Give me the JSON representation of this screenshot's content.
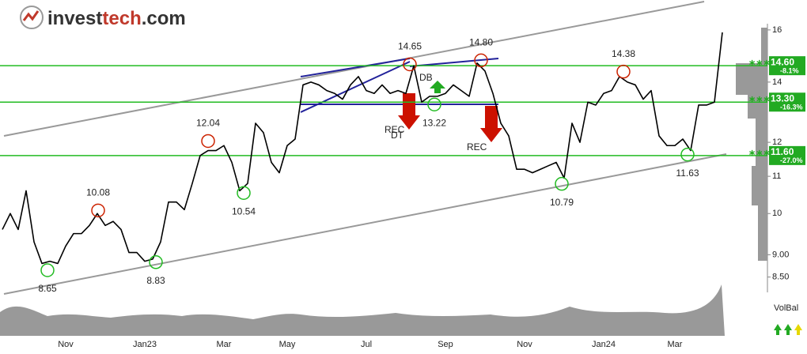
{
  "logo": [
    "invest",
    "tech",
    ".com"
  ],
  "chart_data": {
    "type": "line",
    "ylog": true,
    "ylim": [
      8.34,
      17.1
    ],
    "yticks": [
      {
        "value": 8.5,
        "label": "8.50"
      },
      {
        "value": 9,
        "label": "9.00"
      },
      10,
      11,
      12,
      14,
      16
    ],
    "categories": [
      null,
      null,
      null,
      null,
      null,
      null,
      null,
      null,
      "Nov",
      null,
      null,
      null,
      null,
      null,
      null,
      null,
      null,
      null,
      "Jan23",
      null,
      null,
      null,
      null,
      null,
      null,
      null,
      null,
      null,
      "Mar",
      null,
      null,
      null,
      null,
      null,
      null,
      null,
      "May",
      null,
      null,
      null,
      null,
      null,
      null,
      null,
      null,
      null,
      "Jul",
      null,
      null,
      null,
      null,
      null,
      null,
      null,
      null,
      null,
      "Sep",
      null,
      null,
      null,
      null,
      null,
      null,
      null,
      null,
      null,
      "Nov",
      null,
      null,
      null,
      null,
      null,
      null,
      null,
      null,
      null,
      "Jan24",
      null,
      null,
      null,
      null,
      null,
      null,
      null,
      null,
      "Mar",
      null,
      null,
      null,
      null,
      null,
      null
    ],
    "series": [
      {
        "color": "#000000",
        "values": [
          9.6,
          10.0,
          9.6,
          10.6,
          9.3,
          8.8,
          8.85,
          8.8,
          9.2,
          9.5,
          9.5,
          9.7,
          10.0,
          9.7,
          9.8,
          9.6,
          9.05,
          9.05,
          8.85,
          8.9,
          9.3,
          10.3,
          10.3,
          10.1,
          10.8,
          11.6,
          11.75,
          11.75,
          11.9,
          11.4,
          10.6,
          10.8,
          12.6,
          12.3,
          11.4,
          11.1,
          11.9,
          12.1,
          13.9,
          14.0,
          13.9,
          13.7,
          13.6,
          13.4,
          13.9,
          14.2,
          13.7,
          13.6,
          13.9,
          13.6,
          13.7,
          13.6,
          14.6,
          13.3,
          13.5,
          13.5,
          13.6,
          13.9,
          13.7,
          13.5,
          14.7,
          14.4,
          13.6,
          12.6,
          12.2,
          11.2,
          11.2,
          11.1,
          11.2,
          11.3,
          11.4,
          10.95,
          12.6,
          12.0,
          13.3,
          13.2,
          13.6,
          13.7,
          14.2,
          14.0,
          13.9,
          13.4,
          13.7,
          12.2,
          11.9,
          11.9,
          12.1,
          11.75,
          13.2,
          13.2,
          13.3,
          15.9
        ]
      }
    ],
    "extremes": [
      8.65,
      10.08,
      8.83,
      12.04,
      10.54,
      14.65,
      {
        "value": 14.8,
        "label": "14.80"
      },
      13.22,
      10.79,
      14.38,
      11.63
    ],
    "levels": [
      {
        "value": 14.6,
        "label": "14.60",
        "change": "-8.1%"
      },
      {
        "value": 13.3,
        "label": "13.30",
        "change": "-16.3%"
      },
      {
        "value": 11.6,
        "label": "11.60",
        "change": "-27.0%"
      }
    ],
    "signals": [
      "DB",
      "REC",
      "DT",
      "REC"
    ],
    "volume_label": "VolBal"
  }
}
